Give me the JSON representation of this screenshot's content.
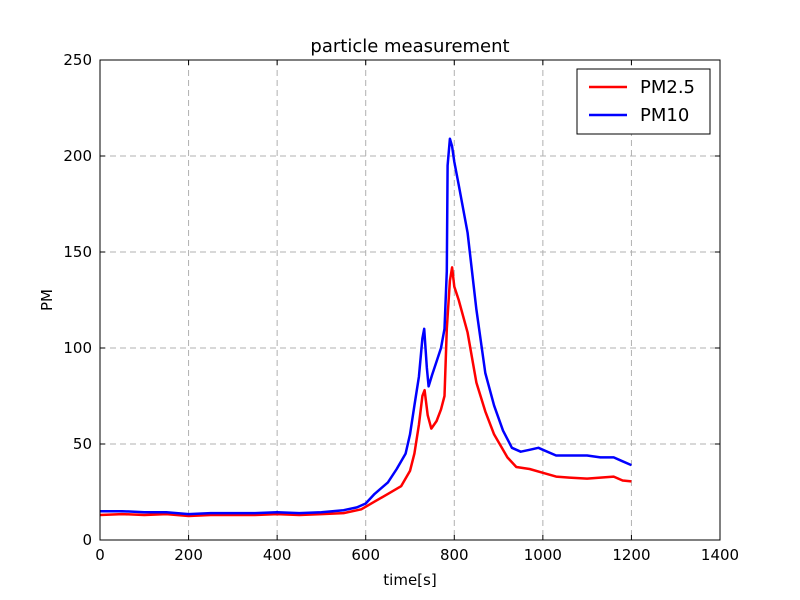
{
  "chart_data": {
    "type": "line",
    "title": "particle measurement",
    "xlabel": "time[s]",
    "ylabel": "PM",
    "xlim": [
      0,
      1400
    ],
    "ylim": [
      0,
      250
    ],
    "xticks": [
      0,
      200,
      400,
      600,
      800,
      1000,
      1200,
      1400
    ],
    "yticks": [
      0,
      50,
      100,
      150,
      200,
      250
    ],
    "grid": true,
    "legend_position": "top-right",
    "series": [
      {
        "name": "PM2.5",
        "color": "#ff0000",
        "points": [
          [
            0,
            13
          ],
          [
            50,
            13.5
          ],
          [
            100,
            13
          ],
          [
            150,
            13.5
          ],
          [
            200,
            12.5
          ],
          [
            250,
            13
          ],
          [
            300,
            13
          ],
          [
            350,
            13
          ],
          [
            400,
            13.5
          ],
          [
            450,
            13
          ],
          [
            500,
            13.5
          ],
          [
            550,
            14
          ],
          [
            590,
            16
          ],
          [
            620,
            20
          ],
          [
            650,
            24
          ],
          [
            680,
            28
          ],
          [
            700,
            36
          ],
          [
            710,
            45
          ],
          [
            720,
            60
          ],
          [
            728,
            75
          ],
          [
            733,
            78
          ],
          [
            740,
            65
          ],
          [
            748,
            58
          ],
          [
            760,
            62
          ],
          [
            770,
            68
          ],
          [
            778,
            75
          ],
          [
            783,
            110
          ],
          [
            790,
            135
          ],
          [
            795,
            142
          ],
          [
            800,
            132
          ],
          [
            810,
            125
          ],
          [
            830,
            108
          ],
          [
            850,
            82
          ],
          [
            870,
            67
          ],
          [
            890,
            55
          ],
          [
            920,
            43
          ],
          [
            940,
            38
          ],
          [
            970,
            37
          ],
          [
            1000,
            35
          ],
          [
            1030,
            33
          ],
          [
            1060,
            32.5
          ],
          [
            1100,
            32
          ],
          [
            1130,
            32.5
          ],
          [
            1160,
            33
          ],
          [
            1180,
            31
          ],
          [
            1200,
            30.5
          ]
        ]
      },
      {
        "name": "PM10",
        "color": "#0000ff",
        "points": [
          [
            0,
            15
          ],
          [
            50,
            15
          ],
          [
            100,
            14.5
          ],
          [
            150,
            14.5
          ],
          [
            200,
            13.5
          ],
          [
            250,
            14
          ],
          [
            300,
            14
          ],
          [
            350,
            14
          ],
          [
            400,
            14.5
          ],
          [
            450,
            14
          ],
          [
            500,
            14.5
          ],
          [
            550,
            15.5
          ],
          [
            580,
            17
          ],
          [
            600,
            19
          ],
          [
            620,
            24
          ],
          [
            650,
            30
          ],
          [
            670,
            37
          ],
          [
            690,
            45
          ],
          [
            700,
            55
          ],
          [
            710,
            70
          ],
          [
            720,
            85
          ],
          [
            728,
            105
          ],
          [
            732,
            110
          ],
          [
            738,
            90
          ],
          [
            742,
            80
          ],
          [
            750,
            86
          ],
          [
            760,
            93
          ],
          [
            770,
            100
          ],
          [
            778,
            110
          ],
          [
            783,
            140
          ],
          [
            785,
            195
          ],
          [
            790,
            209
          ],
          [
            795,
            205
          ],
          [
            800,
            197
          ],
          [
            810,
            185
          ],
          [
            830,
            160
          ],
          [
            850,
            120
          ],
          [
            870,
            87
          ],
          [
            890,
            70
          ],
          [
            910,
            57
          ],
          [
            930,
            48
          ],
          [
            950,
            46
          ],
          [
            970,
            47
          ],
          [
            990,
            48
          ],
          [
            1000,
            47
          ],
          [
            1030,
            44
          ],
          [
            1060,
            44
          ],
          [
            1100,
            44
          ],
          [
            1130,
            43
          ],
          [
            1160,
            43
          ],
          [
            1180,
            41
          ],
          [
            1200,
            39
          ]
        ]
      }
    ]
  }
}
